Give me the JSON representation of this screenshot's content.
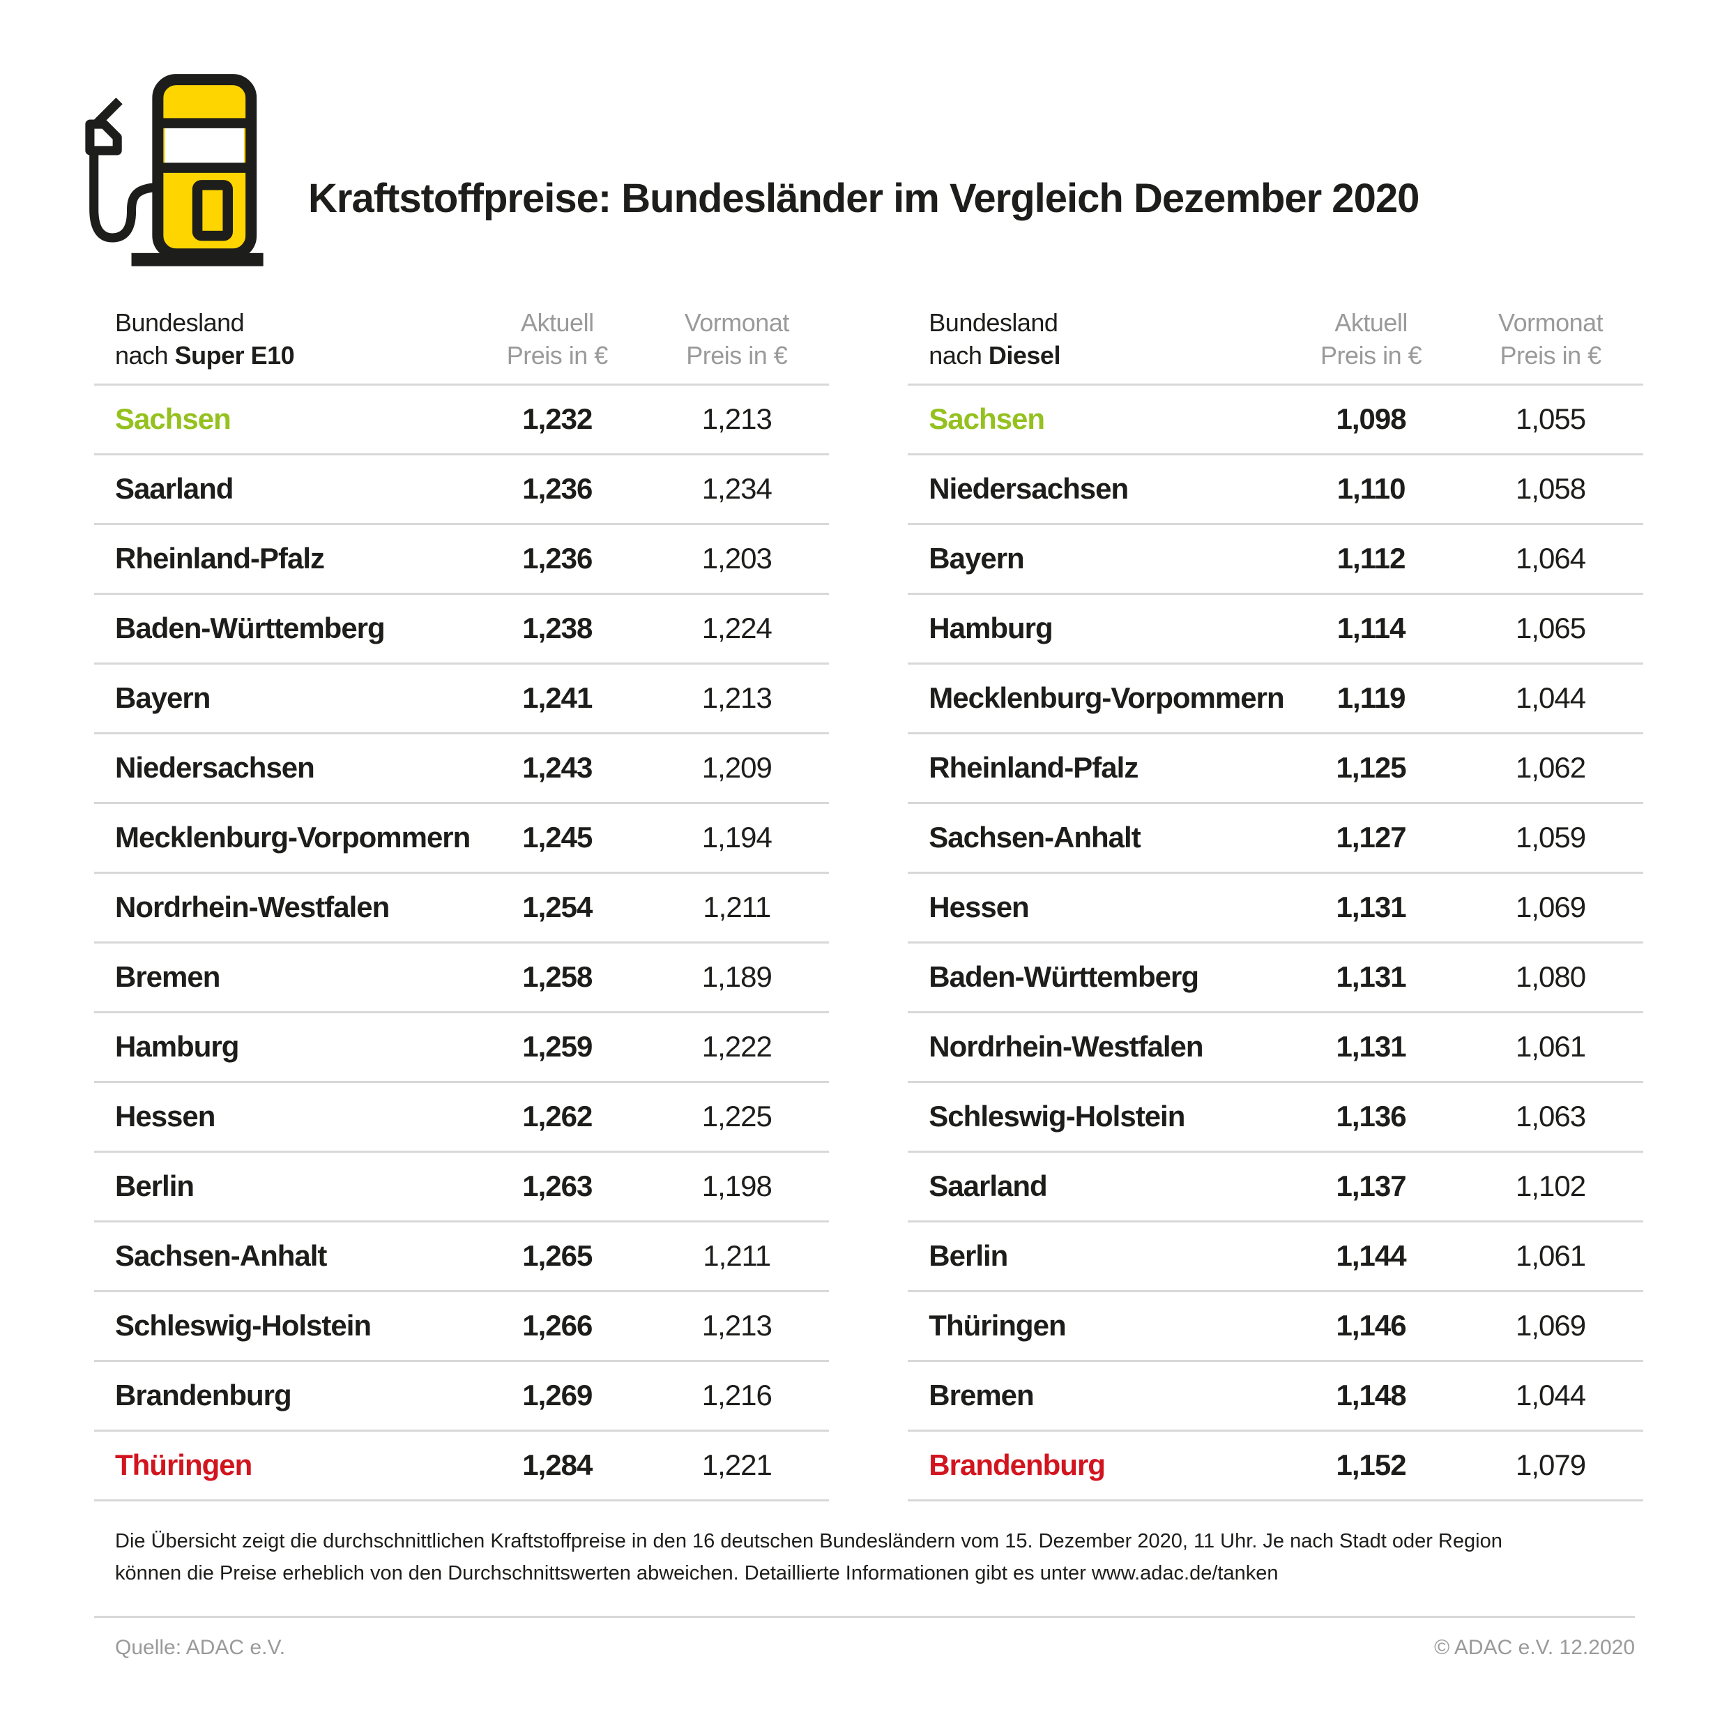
{
  "header": {
    "title": "Kraftstoffpreise: Bundesländer im Vergleich Dezember 2020",
    "icon": "fuel-pump-icon"
  },
  "colors": {
    "accent_yellow": "#FFD500",
    "ink": "#1D1D1B",
    "highlight_green": "#95C11F",
    "highlight_red": "#D2141E",
    "muted_gray": "#9A9A9A",
    "rule_gray": "#D8D8D8"
  },
  "tables": [
    {
      "id": "super-e10",
      "header": {
        "col1_line1": "Bundesland",
        "col1_line2_prefix": "nach",
        "col1_line2_bold": "Super E10",
        "col2_line1": "Aktuell",
        "col2_line2": "Preis in €",
        "col3_line1": "Vormonat",
        "col3_line2": "Preis in €"
      },
      "rows": [
        {
          "land": "Sachsen",
          "aktuell": "1,232",
          "vormonat": "1,213",
          "color": "green"
        },
        {
          "land": "Saarland",
          "aktuell": "1,236",
          "vormonat": "1,234"
        },
        {
          "land": "Rheinland-Pfalz",
          "aktuell": "1,236",
          "vormonat": "1,203"
        },
        {
          "land": "Baden-Württemberg",
          "aktuell": "1,238",
          "vormonat": "1,224"
        },
        {
          "land": "Bayern",
          "aktuell": "1,241",
          "vormonat": "1,213"
        },
        {
          "land": "Niedersachsen",
          "aktuell": "1,243",
          "vormonat": "1,209"
        },
        {
          "land": "Mecklenburg-Vorpommern",
          "aktuell": "1,245",
          "vormonat": "1,194"
        },
        {
          "land": "Nordrhein-Westfalen",
          "aktuell": "1,254",
          "vormonat": "1,211"
        },
        {
          "land": "Bremen",
          "aktuell": "1,258",
          "vormonat": "1,189"
        },
        {
          "land": "Hamburg",
          "aktuell": "1,259",
          "vormonat": "1,222"
        },
        {
          "land": "Hessen",
          "aktuell": "1,262",
          "vormonat": "1,225"
        },
        {
          "land": "Berlin",
          "aktuell": "1,263",
          "vormonat": "1,198"
        },
        {
          "land": "Sachsen-Anhalt",
          "aktuell": "1,265",
          "vormonat": "1,211"
        },
        {
          "land": "Schleswig-Holstein",
          "aktuell": "1,266",
          "vormonat": "1,213"
        },
        {
          "land": "Brandenburg",
          "aktuell": "1,269",
          "vormonat": "1,216"
        },
        {
          "land": "Thüringen",
          "aktuell": "1,284",
          "vormonat": "1,221",
          "color": "red"
        }
      ]
    },
    {
      "id": "diesel",
      "header": {
        "col1_line1": "Bundesland",
        "col1_line2_prefix": "nach",
        "col1_line2_bold": "Diesel",
        "col2_line1": "Aktuell",
        "col2_line2": "Preis in €",
        "col3_line1": "Vormonat",
        "col3_line2": "Preis in €"
      },
      "rows": [
        {
          "land": "Sachsen",
          "aktuell": "1,098",
          "vormonat": "1,055",
          "color": "green"
        },
        {
          "land": "Niedersachsen",
          "aktuell": "1,110",
          "vormonat": "1,058"
        },
        {
          "land": "Bayern",
          "aktuell": "1,112",
          "vormonat": "1,064"
        },
        {
          "land": "Hamburg",
          "aktuell": "1,114",
          "vormonat": "1,065"
        },
        {
          "land": "Mecklenburg-Vorpommern",
          "aktuell": "1,119",
          "vormonat": "1,044"
        },
        {
          "land": "Rheinland-Pfalz",
          "aktuell": "1,125",
          "vormonat": "1,062"
        },
        {
          "land": "Sachsen-Anhalt",
          "aktuell": "1,127",
          "vormonat": "1,059"
        },
        {
          "land": "Hessen",
          "aktuell": "1,131",
          "vormonat": "1,069"
        },
        {
          "land": "Baden-Württemberg",
          "aktuell": "1,131",
          "vormonat": "1,080"
        },
        {
          "land": "Nordrhein-Westfalen",
          "aktuell": "1,131",
          "vormonat": "1,061"
        },
        {
          "land": "Schleswig-Holstein",
          "aktuell": "1,136",
          "vormonat": "1,063"
        },
        {
          "land": "Saarland",
          "aktuell": "1,137",
          "vormonat": "1,102"
        },
        {
          "land": "Berlin",
          "aktuell": "1,144",
          "vormonat": "1,061"
        },
        {
          "land": "Thüringen",
          "aktuell": "1,146",
          "vormonat": "1,069"
        },
        {
          "land": "Bremen",
          "aktuell": "1,148",
          "vormonat": "1,044"
        },
        {
          "land": "Brandenburg",
          "aktuell": "1,152",
          "vormonat": "1,079",
          "color": "red"
        }
      ]
    }
  ],
  "footnote": "Die Übersicht zeigt die durchschnittlichen Kraftstoffpreise in den 16 deutschen Bundesländern vom 15. Dezember 2020, 11 Uhr. Je nach Stadt oder Region können die Preise erheblich von den Durchschnittswerten abweichen. Detaillierte Informationen gibt es unter www.adac.de/tanken",
  "source": {
    "left": "Quelle: ADAC e.V.",
    "right": "© ADAC e.V. 12.2020"
  },
  "chart_data": [
    {
      "type": "table",
      "title": "Bundesland nach Super E10",
      "columns": [
        "Bundesland",
        "Aktuell Preis in €",
        "Vormonat Preis in €"
      ],
      "rows": [
        [
          "Sachsen",
          1.232,
          1.213
        ],
        [
          "Saarland",
          1.236,
          1.234
        ],
        [
          "Rheinland-Pfalz",
          1.236,
          1.203
        ],
        [
          "Baden-Württemberg",
          1.238,
          1.224
        ],
        [
          "Bayern",
          1.241,
          1.213
        ],
        [
          "Niedersachsen",
          1.243,
          1.209
        ],
        [
          "Mecklenburg-Vorpommern",
          1.245,
          1.194
        ],
        [
          "Nordrhein-Westfalen",
          1.254,
          1.211
        ],
        [
          "Bremen",
          1.258,
          1.189
        ],
        [
          "Hamburg",
          1.259,
          1.222
        ],
        [
          "Hessen",
          1.262,
          1.225
        ],
        [
          "Berlin",
          1.263,
          1.198
        ],
        [
          "Sachsen-Anhalt",
          1.265,
          1.211
        ],
        [
          "Schleswig-Holstein",
          1.266,
          1.213
        ],
        [
          "Brandenburg",
          1.269,
          1.216
        ],
        [
          "Thüringen",
          1.284,
          1.221
        ]
      ],
      "notes": "cheapest row (Sachsen) green, most expensive row (Thüringen) red"
    },
    {
      "type": "table",
      "title": "Bundesland nach Diesel",
      "columns": [
        "Bundesland",
        "Aktuell Preis in €",
        "Vormonat Preis in €"
      ],
      "rows": [
        [
          "Sachsen",
          1.098,
          1.055
        ],
        [
          "Niedersachsen",
          1.11,
          1.058
        ],
        [
          "Bayern",
          1.112,
          1.064
        ],
        [
          "Hamburg",
          1.114,
          1.065
        ],
        [
          "Mecklenburg-Vorpommern",
          1.119,
          1.044
        ],
        [
          "Rheinland-Pfalz",
          1.125,
          1.062
        ],
        [
          "Sachsen-Anhalt",
          1.127,
          1.059
        ],
        [
          "Hessen",
          1.131,
          1.069
        ],
        [
          "Baden-Württemberg",
          1.131,
          1.08
        ],
        [
          "Nordrhein-Westfalen",
          1.131,
          1.061
        ],
        [
          "Schleswig-Holstein",
          1.136,
          1.063
        ],
        [
          "Saarland",
          1.137,
          1.102
        ],
        [
          "Berlin",
          1.144,
          1.061
        ],
        [
          "Thüringen",
          1.146,
          1.069
        ],
        [
          "Bremen",
          1.148,
          1.044
        ],
        [
          "Brandenburg",
          1.152,
          1.079
        ]
      ],
      "notes": "cheapest row (Sachsen) green, most expensive row (Brandenburg) red"
    }
  ]
}
